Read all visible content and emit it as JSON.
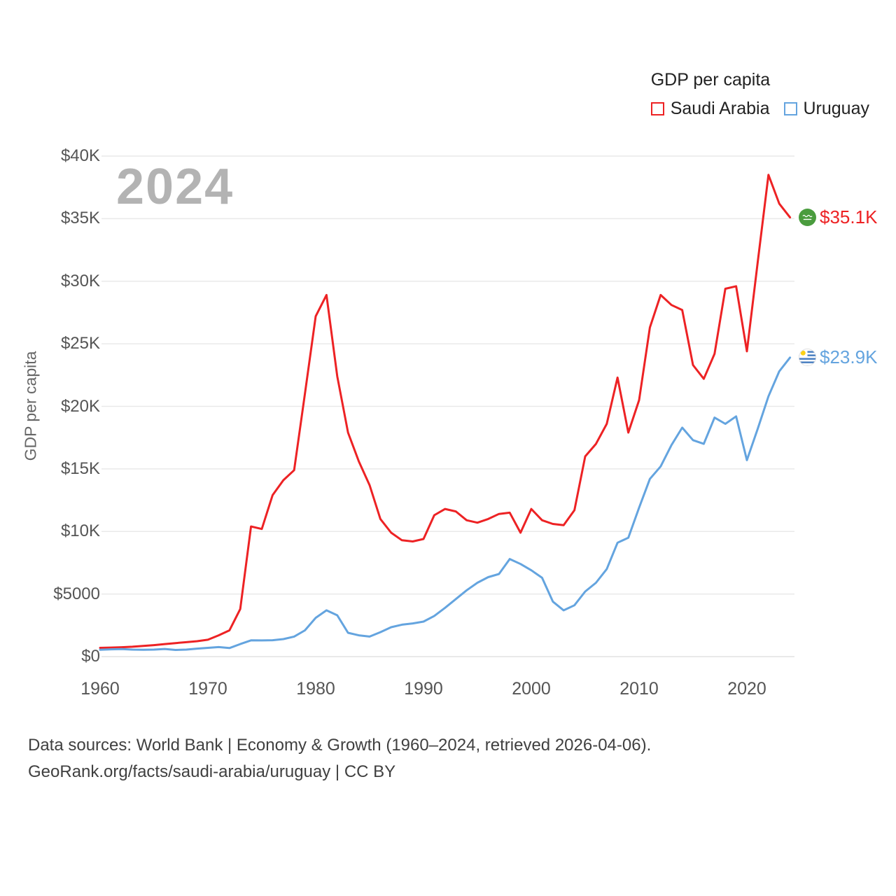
{
  "chart_data": {
    "type": "line",
    "title": "GDP per capita",
    "ylabel": "GDP per capita",
    "xlabel": "",
    "watermark": "2024",
    "grid": true,
    "legend_position": "top-right",
    "x_range": [
      1960,
      2024
    ],
    "y_range": [
      0,
      40000
    ],
    "x_ticks": [
      1960,
      1970,
      1980,
      1990,
      2000,
      2010,
      2020
    ],
    "y_ticks": [
      {
        "value": 0,
        "label": "$0"
      },
      {
        "value": 5000,
        "label": "$5000"
      },
      {
        "value": 10000,
        "label": "$10K"
      },
      {
        "value": 15000,
        "label": "$15K"
      },
      {
        "value": 20000,
        "label": "$20K"
      },
      {
        "value": 25000,
        "label": "$25K"
      },
      {
        "value": 30000,
        "label": "$30K"
      },
      {
        "value": 35000,
        "label": "$35K"
      },
      {
        "value": 40000,
        "label": "$40K"
      }
    ],
    "years": [
      1960,
      1961,
      1962,
      1963,
      1964,
      1965,
      1966,
      1967,
      1968,
      1969,
      1970,
      1971,
      1972,
      1973,
      1974,
      1975,
      1976,
      1977,
      1978,
      1979,
      1980,
      1981,
      1982,
      1983,
      1984,
      1985,
      1986,
      1987,
      1988,
      1989,
      1990,
      1991,
      1992,
      1993,
      1994,
      1995,
      1996,
      1997,
      1998,
      1999,
      2000,
      2001,
      2002,
      2003,
      2004,
      2005,
      2006,
      2007,
      2008,
      2009,
      2010,
      2011,
      2012,
      2013,
      2014,
      2015,
      2016,
      2017,
      2018,
      2019,
      2020,
      2021,
      2022,
      2023,
      2024
    ],
    "series": [
      {
        "name": "Saudi Arabia",
        "color": "#ed2224",
        "end_label": "$35.1K",
        "flag_icon": "saudi-arabia-flag",
        "values": [
          700,
          720,
          750,
          790,
          850,
          920,
          1000,
          1080,
          1150,
          1230,
          1350,
          1700,
          2100,
          3800,
          10400,
          10200,
          12900,
          14100,
          14900,
          21000,
          27200,
          28900,
          22400,
          17900,
          15600,
          13700,
          11000,
          9900,
          9300,
          9200,
          9400,
          11300,
          11800,
          11600,
          10900,
          10700,
          11000,
          11400,
          11500,
          9900,
          11800,
          10900,
          10600,
          10500,
          11700,
          16000,
          17000,
          18600,
          22300,
          17900,
          20500,
          26300,
          28900,
          28100,
          27700,
          23300,
          22200,
          24200,
          29400,
          29600,
          24400,
          31500,
          38500,
          36200,
          35100
        ]
      },
      {
        "name": "Uruguay",
        "color": "#64a4df",
        "end_label": "$23.9K",
        "flag_icon": "uruguay-flag",
        "values": [
          550,
          580,
          600,
          560,
          540,
          560,
          610,
          530,
          560,
          640,
          700,
          760,
          680,
          1000,
          1300,
          1290,
          1310,
          1400,
          1600,
          2100,
          3100,
          3700,
          3300,
          1900,
          1700,
          1600,
          1950,
          2350,
          2550,
          2650,
          2800,
          3250,
          3900,
          4600,
          5300,
          5900,
          6350,
          6600,
          7800,
          7400,
          6900,
          6300,
          4400,
          3700,
          4100,
          5200,
          5900,
          7000,
          9100,
          9500,
          11900,
          14200,
          15200,
          16900,
          18300,
          17300,
          17000,
          19100,
          18600,
          19200,
          15700,
          18200,
          20800,
          22800,
          23900
        ]
      }
    ]
  },
  "footer": {
    "line1": "Data sources: World Bank | Economy & Growth (1960–2024, retrieved 2026-04-06).",
    "line2": "GeoRank.org/facts/saudi-arabia/uruguay | CC BY"
  }
}
